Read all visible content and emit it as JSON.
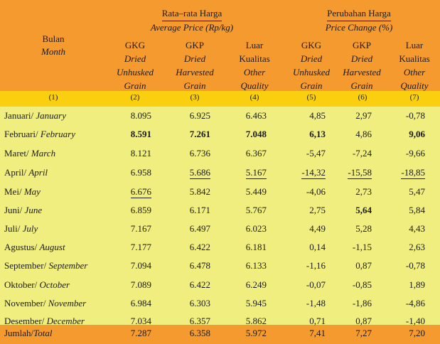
{
  "header": {
    "bulan_id": "Bulan",
    "bulan_en": "Month",
    "avg_group_id": "Rata–rata Harga",
    "avg_group_en": "Average Price (Rp/kg)",
    "chg_group_id": "Perubahan Harga",
    "chg_group_en": "Price Change (%)",
    "columns": [
      {
        "l1": "GKG",
        "l2": "Dried",
        "l3": "Unhusked",
        "l4": "Grain"
      },
      {
        "l1": "GKP",
        "l2": "Dried",
        "l3": "Harvested",
        "l4": "Grain"
      },
      {
        "l1": "Luar",
        "l2": "Kualitas",
        "l3": "Other",
        "l4": "Quality"
      },
      {
        "l1": "GKG",
        "l2": "Dried",
        "l3": "Unhusked",
        "l4": "Grain"
      },
      {
        "l1": "GKP",
        "l2": "Dried",
        "l3": "Harvested",
        "l4": "Grain"
      },
      {
        "l1": "Luar",
        "l2": "Kualitas",
        "l3": "Other",
        "l4": "Quality"
      }
    ],
    "index": [
      "(1)",
      "(2)",
      "(3)",
      "(4)",
      "(5)",
      "(6)",
      "(7)"
    ]
  },
  "rows": [
    {
      "id": "Januari/ ",
      "en": "January",
      "v": [
        "8.095",
        "6.925",
        "6.463",
        "4,85",
        "2,97",
        "-0,78"
      ]
    },
    {
      "id": "Februari/ ",
      "en": "February",
      "v": [
        "8.591",
        "7.261",
        "7.048",
        "6,13",
        "4,86",
        "9,06"
      ]
    },
    {
      "id": "Maret/ ",
      "en": "March",
      "v": [
        "8.121",
        "6.736",
        "6.367",
        "-5,47",
        "-7,24",
        "-9,66"
      ]
    },
    {
      "id": "April/ ",
      "en": "April",
      "v": [
        "6.958",
        "5.686",
        "5.167",
        "-14,32",
        "-15,58",
        "-18,85"
      ]
    },
    {
      "id": "Mei/ ",
      "en": "May",
      "v": [
        "6.676",
        "5.842",
        "5.449",
        "-4,06",
        "2,73",
        "5,47"
      ]
    },
    {
      "id": "Juni/ ",
      "en": "June",
      "v": [
        "6.859",
        "6.171",
        "5.767",
        "2,75",
        "5,64",
        "5,84"
      ]
    },
    {
      "id": "Juli/ ",
      "en": "July",
      "v": [
        "7.167",
        "6.497",
        "6.023",
        "4,49",
        "5,28",
        "4,43"
      ]
    },
    {
      "id": "Agustus/ ",
      "en": "August",
      "v": [
        "7.177",
        "6.422",
        "6.181",
        "0,14",
        "-1,15",
        "2,63"
      ]
    },
    {
      "id": "September/ ",
      "en": "September",
      "v": [
        "7.094",
        "6.478",
        "6.133",
        "-1,16",
        "0,87",
        "-0,78"
      ]
    },
    {
      "id": "Oktober/ ",
      "en": "October",
      "v": [
        "7.089",
        "6.422",
        "6.249",
        "-0,07",
        "-0,85",
        "1,89"
      ]
    },
    {
      "id": "November/ ",
      "en": "November",
      "v": [
        "6.984",
        "6.303",
        "5.945",
        "-1,48",
        "-1,86",
        "-4,86"
      ]
    },
    {
      "id": "Desember/ ",
      "en": "December",
      "v": [
        "7.034",
        "6.357",
        "5.862",
        "0,71",
        "0,87",
        "-1,40"
      ]
    }
  ],
  "total": {
    "id": "Jumlah/",
    "en": "Total",
    "v": [
      "7.287",
      "6.358",
      "5.972",
      "7,41",
      "7,27",
      "7,20"
    ]
  }
}
